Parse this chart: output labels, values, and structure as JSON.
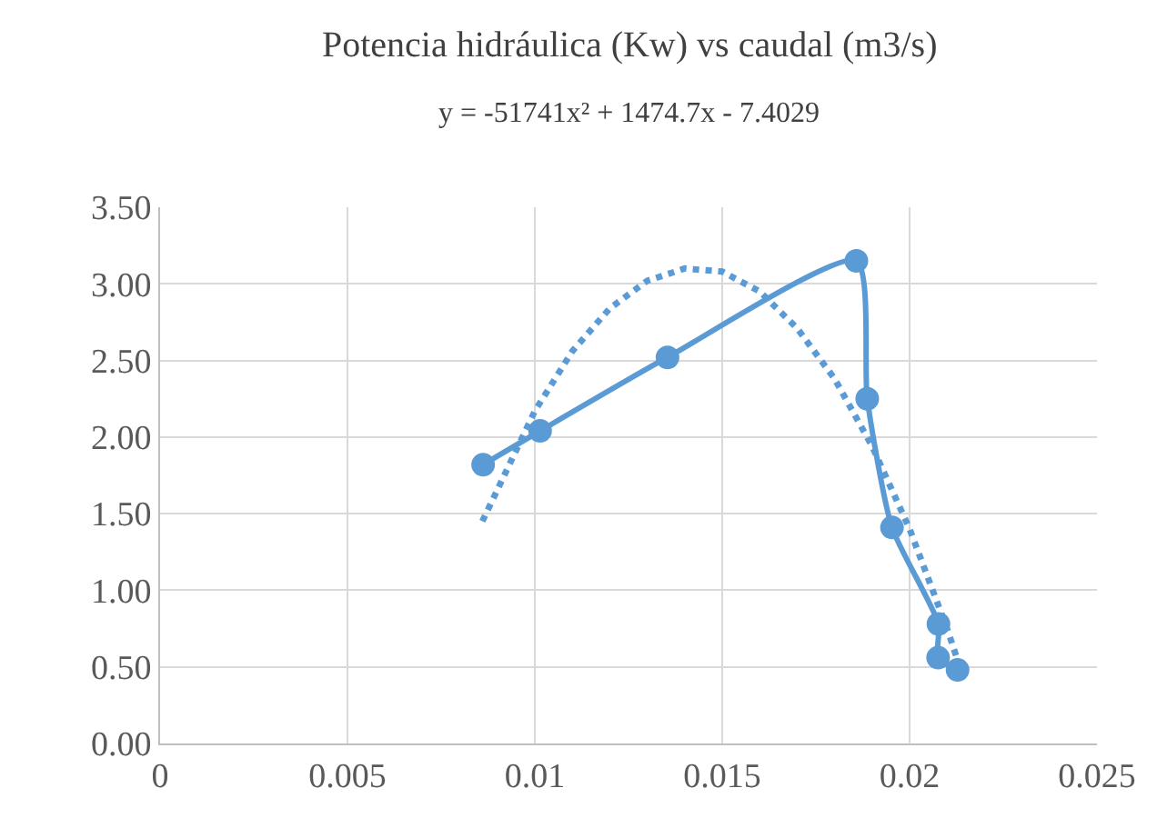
{
  "chart_data": {
    "type": "line",
    "title": "Potencia hidráulica (Kw) vs caudal (m3/s)",
    "subtitle": "y = -51741x² + 1474.7x - 7.4029",
    "series": [
      {
        "color": "#5b9bd5",
        "marker": "circle",
        "line_style": "solid",
        "x": [
          0.00862,
          0.01014,
          0.01354,
          0.01858,
          0.01887,
          0.01953,
          0.02077,
          0.02076,
          0.02128
        ],
        "values": [
          1.82,
          2.04,
          2.52,
          3.15,
          2.25,
          1.41,
          0.78,
          0.56,
          0.48
        ]
      },
      {
        "type": "line",
        "color": "#5b9bd5",
        "marker": "none",
        "line_style": "dotted",
        "x": [
          0.0086,
          0.01,
          0.011,
          0.012,
          0.013,
          0.014,
          0.015,
          0.016,
          0.017,
          0.018,
          0.019,
          0.02,
          0.021,
          0.0213
        ],
        "values": [
          1.45,
          2.17,
          2.56,
          2.84,
          3.02,
          3.1,
          3.08,
          2.95,
          2.71,
          2.38,
          1.94,
          1.4,
          0.75,
          0.53
        ]
      }
    ],
    "xlim": [
      0,
      0.025
    ],
    "xticks": [
      0,
      0.005,
      0.01,
      0.015,
      0.02,
      0.025
    ],
    "ylim": [
      0,
      3.5
    ],
    "yticks": [
      {
        "value": 0,
        "label": "0.00"
      },
      {
        "value": 0.5,
        "label": "0.50"
      },
      {
        "value": 1,
        "label": "1.00"
      },
      {
        "value": 1.5,
        "label": "1.50"
      },
      {
        "value": 2,
        "label": "2.00"
      },
      {
        "value": 2.5,
        "label": "2.50"
      },
      {
        "value": 3,
        "label": "3.00"
      },
      {
        "value": 3.5,
        "label": "3.50"
      }
    ],
    "grid": true,
    "legend": false
  }
}
